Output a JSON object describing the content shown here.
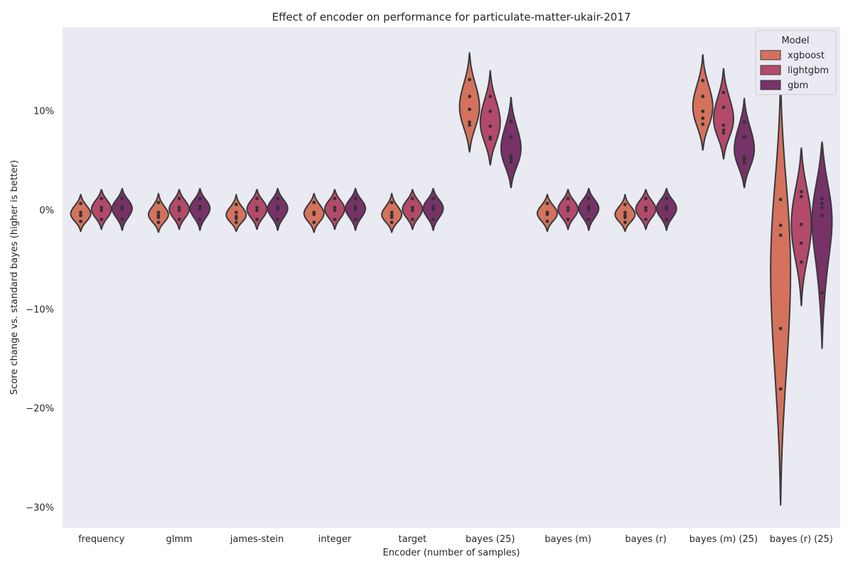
{
  "chart_data": {
    "type": "violin",
    "title": "Effect of encoder on performance for particulate-matter-ukair-2017",
    "xlabel": "Encoder (number of samples)",
    "ylabel": "Score change vs. standard bayes (higher is better)",
    "y_unit": "percent",
    "ylim": [
      -32,
      18.5
    ],
    "yticks": [
      -30,
      -20,
      -10,
      0,
      10
    ],
    "ytick_labels": [
      "−30%",
      "−20%",
      "−10%",
      "0%",
      "10%"
    ],
    "grid": false,
    "legend": {
      "title": "Model",
      "position": "top-right",
      "entries": [
        "xgboost",
        "lightgbm",
        "gbm"
      ]
    },
    "categories": [
      "frequency",
      "glmm",
      "james-stein",
      "integer",
      "target",
      "bayes (25)",
      "bayes (m)",
      "bayes (r)",
      "bayes (m) (25)",
      "bayes (r) (25)"
    ],
    "series": [
      {
        "name": "xgboost",
        "color": "#d4725e",
        "distributions": [
          {
            "min": -2.1,
            "max": 1.6,
            "points": [
              0.7,
              -0.2,
              -0.5,
              -1.1
            ]
          },
          {
            "min": -2.2,
            "max": 1.7,
            "points": [
              0.8,
              -0.2,
              -0.5,
              -0.7,
              -1.2
            ]
          },
          {
            "min": -2.1,
            "max": 1.6,
            "points": [
              0.6,
              -0.2,
              -0.6,
              -0.8,
              -1.2
            ]
          },
          {
            "min": -2.2,
            "max": 1.7,
            "points": [
              0.8,
              -0.2,
              -0.4,
              -1.2
            ]
          },
          {
            "min": -2.2,
            "max": 1.7,
            "points": [
              0.8,
              -0.2,
              -0.5,
              -0.7,
              -1.2
            ]
          },
          {
            "min": 5.9,
            "max": 15.9,
            "points": [
              13.2,
              11.5,
              10.2,
              8.9,
              8.6
            ]
          },
          {
            "min": -2.1,
            "max": 1.6,
            "points": [
              0.7,
              -0.2,
              -0.4,
              -1.1
            ]
          },
          {
            "min": -2.1,
            "max": 1.6,
            "points": [
              0.6,
              -0.2,
              -0.5,
              -0.7,
              -1.2
            ]
          },
          {
            "min": 6.1,
            "max": 15.7,
            "points": [
              13.1,
              11.5,
              10.0,
              9.3,
              8.7
            ]
          },
          {
            "min": -29.7,
            "max": 12.7,
            "points": [
              1.1,
              -1.5,
              -2.5,
              -11.9,
              -18.0
            ]
          }
        ]
      },
      {
        "name": "lightgbm",
        "color": "#b34a6b",
        "distributions": [
          {
            "min": -1.9,
            "max": 2.1,
            "points": [
              1.2,
              0.3,
              0.0,
              -0.9
            ]
          },
          {
            "min": -1.9,
            "max": 2.1,
            "points": [
              1.2,
              0.3,
              0.0,
              -0.9
            ]
          },
          {
            "min": -1.9,
            "max": 2.1,
            "points": [
              1.2,
              0.3,
              0.0,
              -0.9
            ]
          },
          {
            "min": -1.9,
            "max": 2.1,
            "points": [
              1.2,
              0.3,
              0.0,
              -0.9
            ]
          },
          {
            "min": -1.9,
            "max": 2.1,
            "points": [
              1.2,
              0.3,
              0.0,
              -0.9
            ]
          },
          {
            "min": 4.6,
            "max": 14.1,
            "points": [
              11.5,
              10.0,
              8.5,
              7.4,
              7.2
            ]
          },
          {
            "min": -1.9,
            "max": 2.1,
            "points": [
              1.2,
              0.3,
              0.0,
              -0.9
            ]
          },
          {
            "min": -1.9,
            "max": 2.1,
            "points": [
              1.2,
              0.3,
              0.0,
              -0.9
            ]
          },
          {
            "min": 5.2,
            "max": 14.3,
            "points": [
              11.9,
              10.4,
              8.6,
              8.1,
              7.8
            ]
          },
          {
            "min": -9.6,
            "max": 6.3,
            "points": [
              1.9,
              1.4,
              -1.4,
              -3.3,
              -5.2
            ]
          }
        ]
      },
      {
        "name": "gbm",
        "color": "#773268",
        "distributions": [
          {
            "min": -2.0,
            "max": 2.2,
            "points": [
              1.2,
              0.4,
              0.1,
              -0.9
            ]
          },
          {
            "min": -2.0,
            "max": 2.2,
            "points": [
              1.2,
              0.4,
              0.1,
              -0.9
            ]
          },
          {
            "min": -2.0,
            "max": 2.2,
            "points": [
              1.2,
              0.4,
              0.1,
              -0.9
            ]
          },
          {
            "min": -2.0,
            "max": 2.2,
            "points": [
              1.2,
              0.4,
              0.1,
              -0.9
            ]
          },
          {
            "min": -2.0,
            "max": 2.2,
            "points": [
              1.2,
              0.4,
              0.1,
              -0.9
            ]
          },
          {
            "min": 2.3,
            "max": 11.4,
            "points": [
              9.0,
              7.4,
              5.5,
              5.2,
              4.9
            ]
          },
          {
            "min": -2.0,
            "max": 2.2,
            "points": [
              1.2,
              0.4,
              0.1,
              -0.9
            ]
          },
          {
            "min": -2.0,
            "max": 2.2,
            "points": [
              1.2,
              0.4,
              0.1,
              -0.9
            ]
          },
          {
            "min": 2.3,
            "max": 11.3,
            "points": [
              8.9,
              7.4,
              5.4,
              5.1,
              4.8
            ]
          },
          {
            "min": -13.9,
            "max": 6.9,
            "points": [
              1.2,
              0.7,
              0.3,
              -0.5,
              -8.3
            ]
          }
        ]
      }
    ]
  }
}
